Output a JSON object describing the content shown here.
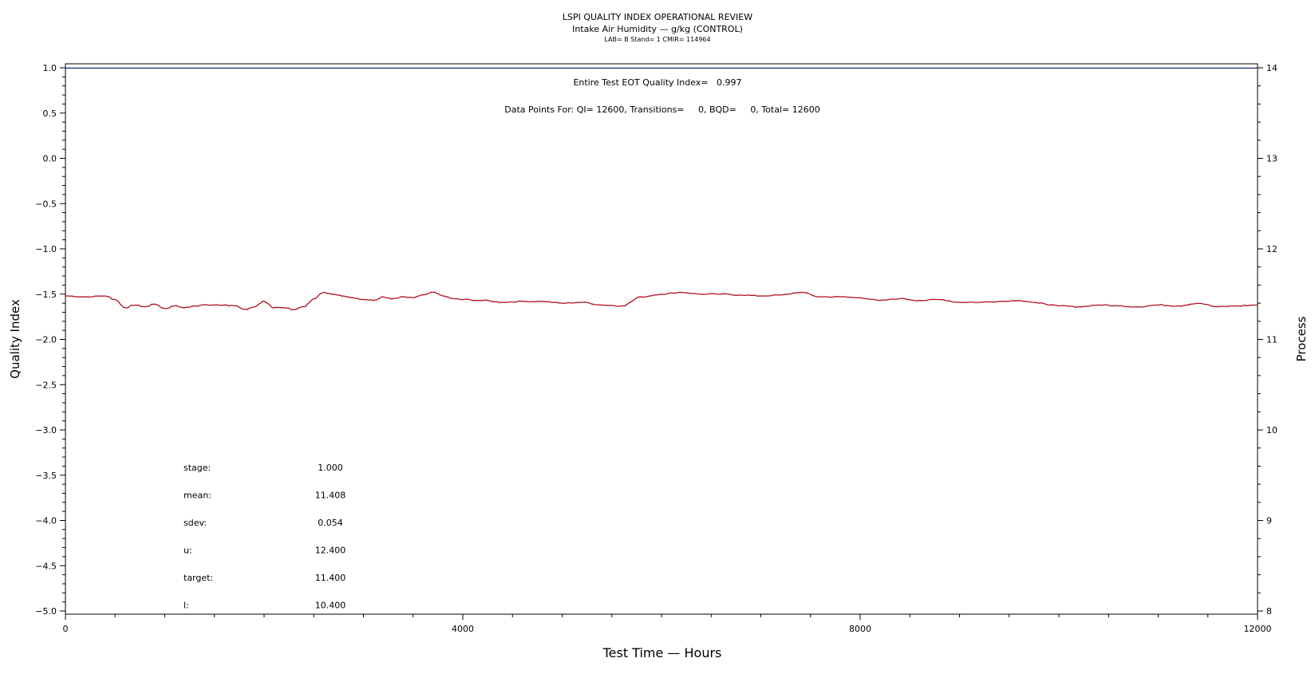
{
  "chart_data": {
    "type": "line",
    "title": "LSPI QUALITY INDEX OPERATIONAL REVIEW",
    "subtitle": "Intake Air Humidity — g/kg (CONTROL)",
    "subtitle2": "LAB= B Stand= 1 CMIR= 114964",
    "xlabel": "Test Time — Hours",
    "ylabel": "Quality Index",
    "y2label": "Process",
    "xlim": [
      0,
      12000
    ],
    "ylim": [
      -5.0,
      1.0
    ],
    "y2lim": [
      8,
      14
    ],
    "x_ticks": [
      0,
      4000,
      8000,
      12000
    ],
    "x_tick_labels": [
      "0",
      "4000",
      "8000",
      "12000"
    ],
    "y_ticks": [
      1.0,
      0.5,
      0.0,
      -0.5,
      -1.0,
      -1.5,
      -2.0,
      -2.5,
      -3.0,
      -3.5,
      -4.0,
      -4.5,
      -5.0
    ],
    "y_tick_labels": [
      "1.0",
      "0.5",
      "0.0",
      "−0.5",
      "−1.0",
      "−1.5",
      "−2.0",
      "−2.5",
      "−3.0",
      "−3.5",
      "−4.0",
      "−4.5",
      "−5.0"
    ],
    "y2_ticks": [
      14,
      13,
      12,
      11,
      10,
      9,
      8
    ],
    "y2_tick_labels": [
      "14",
      "13",
      "12",
      "11",
      "10",
      "9",
      "8"
    ],
    "reference_lines": [
      {
        "axis": "y",
        "value": 0.997
      }
    ],
    "annotations": {
      "eot": "Entire Test EOT Quality Index=   0.997",
      "points": "Data Points For: QI= 12600, Transitions=     0, BQD=     0, Total= 12600"
    },
    "stats": [
      {
        "label": "stage:",
        "value": "1.000"
      },
      {
        "label": "mean:",
        "value": "11.408"
      },
      {
        "label": "sdev:",
        "value": "0.054"
      },
      {
        "label": "u:",
        "value": "12.400"
      },
      {
        "label": "target:",
        "value": "11.400"
      },
      {
        "label": "l:",
        "value": "10.400"
      }
    ],
    "series": [
      {
        "color": "#b01020",
        "axis": "y2",
        "x": [
          0,
          200,
          400,
          500,
          600,
          700,
          800,
          900,
          1000,
          1100,
          1200,
          1300,
          1400,
          1500,
          1600,
          1700,
          1800,
          1900,
          2000,
          2100,
          2200,
          2300,
          2400,
          2500,
          2600,
          2700,
          2800,
          2900,
          3000,
          3100,
          3200,
          3300,
          3400,
          3500,
          3600,
          3700,
          3800,
          3900,
          4000,
          4200,
          4400,
          4600,
          4800,
          5000,
          5200,
          5400,
          5600,
          5800,
          6000,
          6200,
          6400,
          6600,
          6800,
          7000,
          7200,
          7400,
          7600,
          7800,
          8000,
          8200,
          8400,
          8600,
          8800,
          9000,
          9200,
          9400,
          9600,
          9800,
          10000,
          10200,
          10400,
          10600,
          10800,
          11000,
          11200,
          11400,
          11600,
          11800,
          12000
        ],
        "values": [
          11.48,
          11.47,
          11.48,
          11.44,
          11.35,
          11.38,
          11.36,
          11.39,
          11.34,
          11.37,
          11.35,
          11.37,
          11.38,
          11.38,
          11.38,
          11.37,
          11.33,
          11.36,
          11.42,
          11.35,
          11.35,
          11.33,
          11.36,
          11.45,
          11.52,
          11.5,
          11.48,
          11.46,
          11.44,
          11.43,
          11.47,
          11.45,
          11.47,
          11.46,
          11.49,
          11.52,
          11.48,
          11.45,
          11.44,
          11.43,
          11.41,
          11.42,
          11.42,
          11.4,
          11.41,
          11.38,
          11.37,
          11.47,
          11.5,
          11.52,
          11.5,
          11.5,
          11.49,
          11.48,
          11.49,
          11.52,
          11.47,
          11.47,
          11.46,
          11.43,
          11.45,
          11.43,
          11.44,
          11.41,
          11.41,
          11.42,
          11.43,
          11.4,
          11.37,
          11.36,
          11.38,
          11.37,
          11.36,
          11.38,
          11.37,
          11.4,
          11.36,
          11.37,
          11.38
        ]
      }
    ]
  }
}
